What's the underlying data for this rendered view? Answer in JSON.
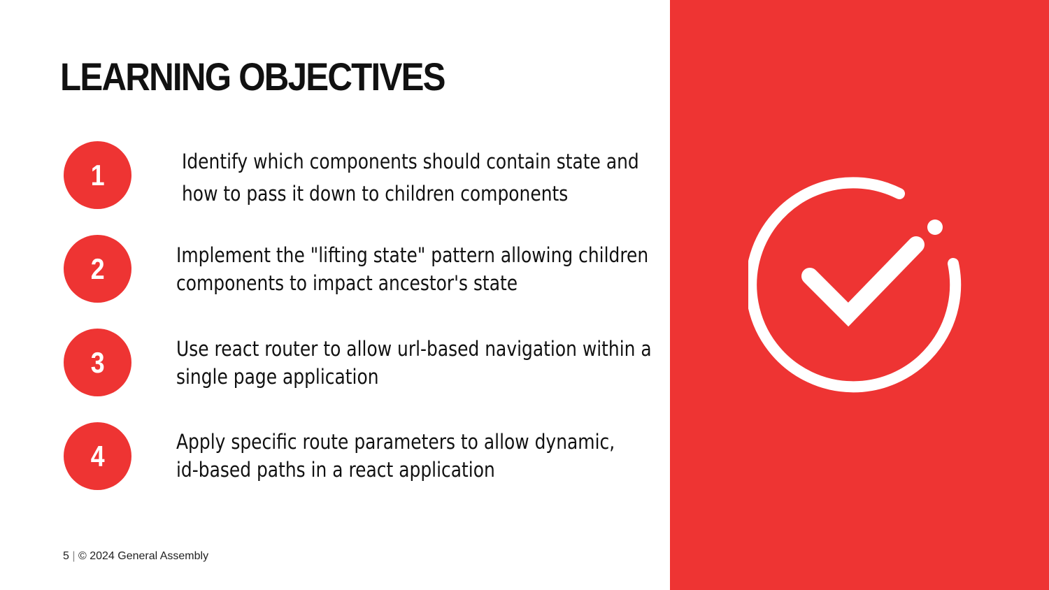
{
  "slide": {
    "title": "LEARNING OBJECTIVES",
    "objectives": [
      {
        "number": "1",
        "lines": [
          "Identify which components should contain state and",
          "how to pass it down to children components"
        ]
      },
      {
        "number": "2",
        "lines": [
          "Implement the \"lifting state\" pattern allowing children",
          "components to impact ancestor's state"
        ]
      },
      {
        "number": "3",
        "lines": [
          "Use react router to allow url-based navigation within a",
          "single page application"
        ]
      },
      {
        "number": "4",
        "lines": [
          "Apply specific route parameters to allow dynamic,",
          "id-based paths in a react application"
        ]
      }
    ],
    "footer": {
      "page_number": "5",
      "separator": "|",
      "copyright": "© 2024 General Assembly"
    }
  },
  "colors": {
    "accent": "#ee3433",
    "text": "#111111",
    "background": "#ffffff"
  },
  "icons": {
    "panel_graphic": "checkmark-circle-icon"
  }
}
